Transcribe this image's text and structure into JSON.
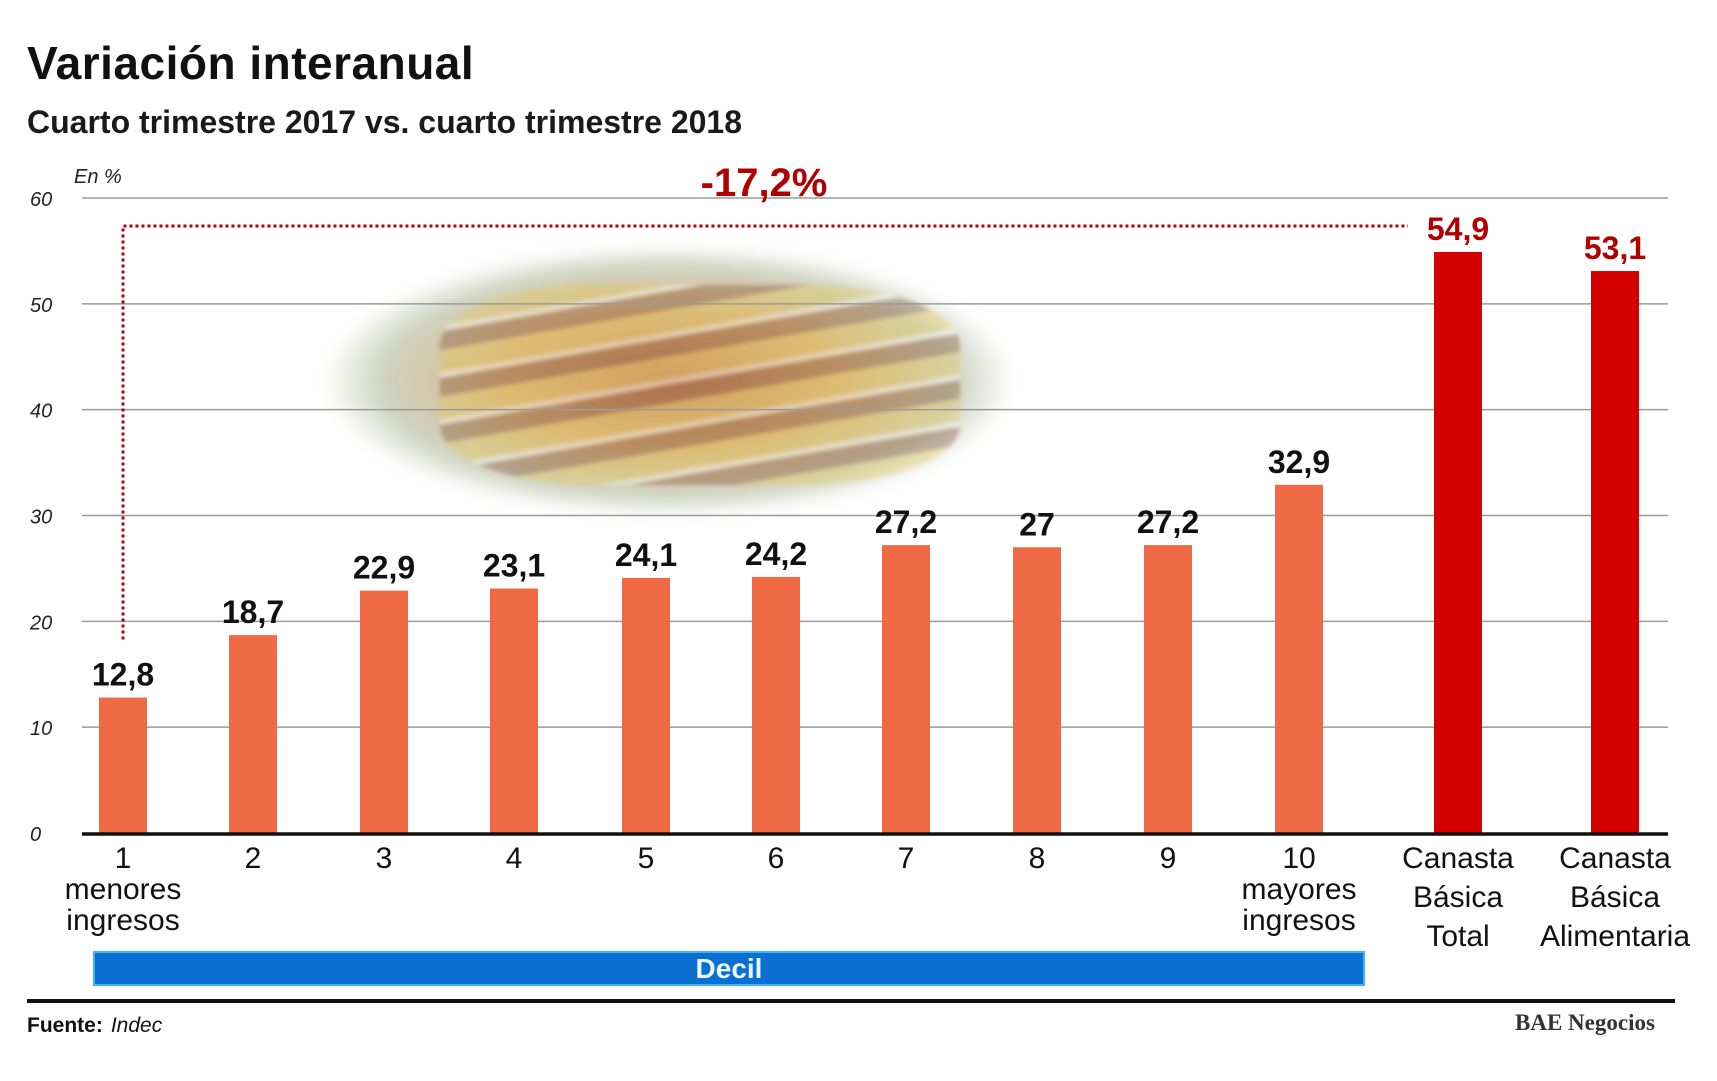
{
  "title": "Variación interanual",
  "subtitle": "Cuarto trimestre 2017 vs. cuarto trimestre 2018",
  "unit_label": "En %",
  "source_label": "Fuente:",
  "source_value": "Indec",
  "brand": "BAE Negocios",
  "group_label": "Decil",
  "colors": {
    "decile_bar": "#ef6a44",
    "basket_bar": "#d40000",
    "annotation": "#b00000",
    "decil_band": "#0a6fd1"
  },
  "chart_data": {
    "type": "bar",
    "title": "Variación interanual",
    "subtitle": "Cuarto trimestre 2017 vs. cuarto trimestre 2018",
    "ylabel": "En %",
    "ylim": [
      0,
      60
    ],
    "yticks": [
      0,
      10,
      20,
      30,
      40,
      50,
      60
    ],
    "grid": true,
    "categories": [
      [
        "1",
        "menores",
        "ingresos"
      ],
      [
        "2"
      ],
      [
        "3"
      ],
      [
        "4"
      ],
      [
        "5"
      ],
      [
        "6"
      ],
      [
        "7"
      ],
      [
        "8"
      ],
      [
        "9"
      ],
      [
        "10",
        "mayores",
        "ingresos"
      ],
      [
        "Canasta",
        "Básica",
        "Total"
      ],
      [
        "Canasta",
        "Básica",
        "Alimentaria"
      ]
    ],
    "values": [
      12.8,
      18.7,
      22.9,
      23.1,
      24.1,
      24.2,
      27.2,
      27,
      27.2,
      32.9,
      54.9,
      53.1
    ],
    "value_labels": [
      "12,8",
      "18,7",
      "22,9",
      "23,1",
      "24,1",
      "24,2",
      "27,2",
      "27",
      "27,2",
      "32,9",
      "54,9",
      "53,1"
    ],
    "highlight": [
      false,
      false,
      false,
      false,
      false,
      false,
      false,
      false,
      false,
      false,
      true,
      true
    ],
    "annotation": {
      "text": "-17,2%",
      "from_index": 0,
      "to_index": 10
    }
  }
}
